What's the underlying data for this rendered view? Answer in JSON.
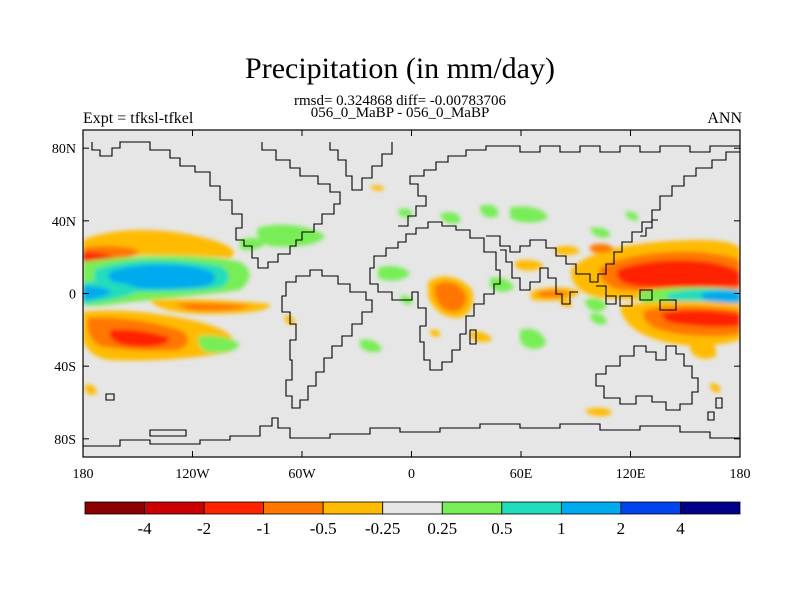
{
  "title": "Precipitation (in mm/day)",
  "stats_line": "rmsd= 0.324868 diff= -0.00783706",
  "case_line": "056_0_MaBP - 056_0_MaBP",
  "left_label": "Expt = tfksl-tfkel",
  "right_label": "ANN",
  "map": {
    "projection": "cylindrical equidistant",
    "lon_range": [
      -180,
      180
    ],
    "lat_range": [
      -90,
      90
    ],
    "lon_ticks": [
      {
        "lon": -180,
        "label": "180"
      },
      {
        "lon": -120,
        "label": "120W"
      },
      {
        "lon": -60,
        "label": "60W"
      },
      {
        "lon": 0,
        "label": "0"
      },
      {
        "lon": 60,
        "label": "60E"
      },
      {
        "lon": 120,
        "label": "120E"
      },
      {
        "lon": 180,
        "label": "180"
      }
    ],
    "lat_ticks": [
      {
        "lat": 80,
        "label": "80N"
      },
      {
        "lat": 40,
        "label": "40N"
      },
      {
        "lat": 0,
        "label": "0"
      },
      {
        "lat": -40,
        "label": "40S"
      },
      {
        "lat": -80,
        "label": "80S"
      }
    ],
    "background_color": "#e6e6e6",
    "coast_color": "#000000"
  },
  "colorbar": {
    "colors": [
      "#8b0000",
      "#cc0000",
      "#ff2200",
      "#ff7700",
      "#ffbb00",
      "#e6e6e6",
      "#77ee55",
      "#22ddbb",
      "#00aaee",
      "#0044ee",
      "#000088"
    ],
    "labels": [
      "-4",
      "-2",
      "-1",
      "-0.5",
      "-0.25",
      "0.25",
      "0.5",
      "1",
      "2",
      "4"
    ]
  }
}
